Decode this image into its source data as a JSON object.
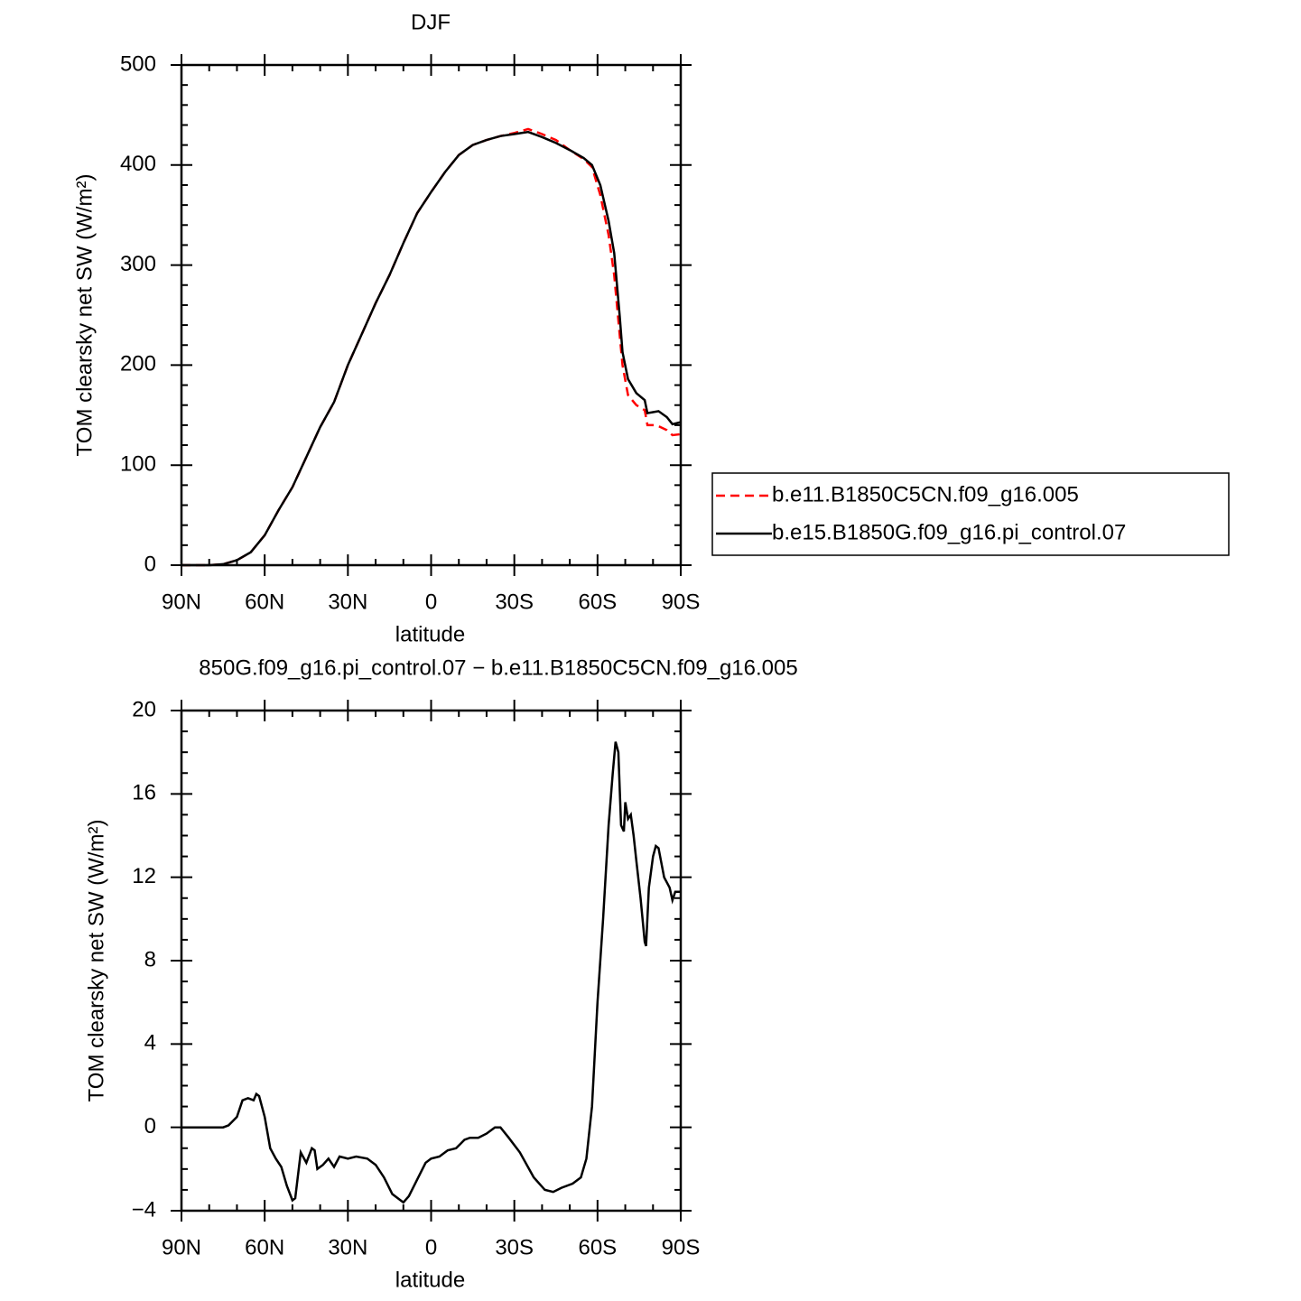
{
  "chart_data": [
    {
      "type": "line",
      "title": "DJF",
      "x_label": "latitude",
      "y_label": "TOM clearsky net SW (W/m²)",
      "x": [
        90,
        80,
        75,
        70,
        65,
        60,
        55,
        50,
        45,
        40,
        35,
        30,
        25,
        20,
        15,
        10,
        5,
        0,
        -5,
        -10,
        -15,
        -20,
        -25,
        -30,
        -35,
        -40,
        -45,
        -50,
        -55,
        -58,
        -61,
        -64,
        -66,
        -68,
        -69,
        -71,
        -74,
        -77,
        -78,
        -80,
        -82,
        -85,
        -87,
        -90
      ],
      "series": [
        {
          "name": "b.e11.B1850C5CN.f09_g16.005",
          "color": "#ff0000",
          "dash": true,
          "values": [
            0,
            0,
            1,
            5,
            13,
            30,
            55,
            78,
            108,
            138,
            163,
            200,
            231,
            262,
            290,
            322,
            352,
            373,
            393,
            410,
            420,
            425,
            429,
            432,
            436,
            431,
            425,
            415,
            406,
            398,
            370,
            330,
            290,
            230,
            200,
            170,
            160,
            155,
            140,
            140,
            139,
            135,
            130,
            131
          ]
        },
        {
          "name": "b.e15.B1850G.f09_g16.pi_control.07",
          "color": "#000000",
          "dash": false,
          "values": [
            0,
            0,
            1,
            5,
            13,
            30,
            55,
            78,
            108,
            138,
            163,
            200,
            231,
            262,
            290,
            322,
            352,
            373,
            393,
            410,
            420,
            425,
            429,
            431,
            433,
            428,
            422,
            415,
            407,
            400,
            380,
            344,
            312,
            249,
            213,
            186,
            172,
            165,
            152,
            153,
            154,
            148,
            141,
            143
          ]
        }
      ],
      "xlim": [
        90,
        -90
      ],
      "xticks": [
        {
          "value": 90,
          "label": "90N"
        },
        {
          "value": 60,
          "label": "60N"
        },
        {
          "value": 30,
          "label": "30N"
        },
        0,
        {
          "value": -30,
          "label": "30S"
        },
        {
          "value": -60,
          "label": "60S"
        },
        {
          "value": -90,
          "label": "90S"
        }
      ],
      "ylim": [
        0,
        500
      ],
      "yticks": [
        0,
        100,
        200,
        300,
        400,
        500
      ],
      "legend": "right"
    },
    {
      "type": "line",
      "title": "850G.f09_g16.pi_control.07 − b.e11.B1850C5CN.f09_g16.005",
      "x_label": "latitude",
      "y_label": "TOM clearsky net SW (W/m²)",
      "x": [
        90,
        75,
        73,
        70,
        68,
        66,
        64,
        63,
        62,
        60,
        58,
        56,
        54,
        52,
        50,
        49,
        47,
        45,
        43,
        42,
        41,
        39,
        37,
        35,
        33,
        30,
        27,
        23,
        20,
        17,
        14,
        11,
        10,
        8,
        5,
        2,
        0,
        -3,
        -6,
        -9,
        -12,
        -14,
        -17,
        -20,
        -23,
        -25,
        -28,
        -32,
        -37,
        -41,
        -44,
        -47,
        -51,
        -54,
        -56,
        -58,
        -60,
        -62,
        -64,
        -65.5,
        -66.5,
        -67.5,
        -68.5,
        -69.5,
        -70,
        -71,
        -72,
        -73,
        -74,
        -75.5,
        -77,
        -77.5,
        -78.5,
        -80,
        -81,
        -82,
        -84,
        -86,
        -87,
        -88,
        -90
      ],
      "values": [
        0,
        0,
        0.1,
        0.5,
        1.3,
        1.4,
        1.3,
        1.6,
        1.5,
        0.5,
        -1.0,
        -1.5,
        -1.9,
        -2.8,
        -3.5,
        -3.4,
        -1.2,
        -1.7,
        -1.0,
        -1.1,
        -2.0,
        -1.8,
        -1.5,
        -1.9,
        -1.4,
        -1.5,
        -1.4,
        -1.5,
        -1.8,
        -2.4,
        -3.2,
        -3.5,
        -3.6,
        -3.3,
        -2.5,
        -1.7,
        -1.5,
        -1.4,
        -1.1,
        -1.0,
        -0.6,
        -0.5,
        -0.5,
        -0.3,
        0,
        0,
        -0.5,
        -1.2,
        -2.4,
        -3.0,
        -3.1,
        -2.9,
        -2.7,
        -2.4,
        -1.5,
        1.0,
        6.0,
        10.0,
        14.5,
        17.0,
        18.5,
        18.0,
        14.5,
        14.2,
        15.6,
        14.8,
        15.0,
        14.0,
        12.8,
        11.0,
        8.9,
        8.7,
        11.5,
        13.0,
        13.5,
        13.4,
        12.0,
        11.5,
        10.9,
        11.3,
        11.3
      ],
      "color": "#000000",
      "xlim": [
        90,
        -90
      ],
      "xticks": [
        {
          "value": 90,
          "label": "90N"
        },
        {
          "value": 60,
          "label": "60N"
        },
        {
          "value": 30,
          "label": "30N"
        },
        0,
        {
          "value": -30,
          "label": "30S"
        },
        {
          "value": -60,
          "label": "60S"
        },
        {
          "value": -90,
          "label": "90S"
        }
      ],
      "ylim": [
        -4,
        20
      ],
      "yticks": [
        {
          "value": -4,
          "label": "−4"
        },
        0,
        4,
        8,
        12,
        16,
        20
      ]
    }
  ]
}
